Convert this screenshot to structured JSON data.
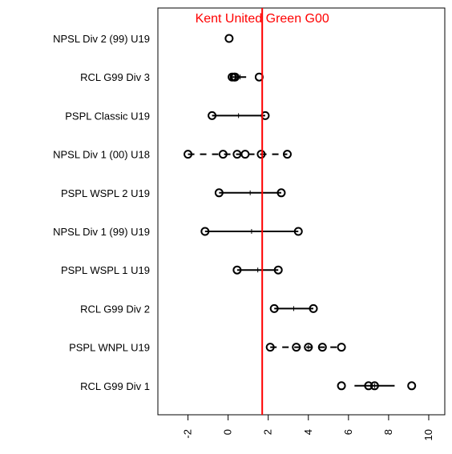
{
  "chart_data": {
    "type": "scatter",
    "orientation": "horizontal",
    "title": "",
    "xlabel": "",
    "ylabel": "",
    "xlim": [
      -3.5,
      10.8
    ],
    "x_ticks": [
      -2,
      0,
      2,
      4,
      6,
      8,
      10
    ],
    "x_tick_labels": [
      "-2",
      "0",
      "2",
      "4",
      "6",
      "8",
      "10"
    ],
    "grid": false,
    "point_color": "#000000",
    "reference_line": {
      "value": 1.7,
      "label": "Kent United Green G00",
      "color": "#ff0000"
    },
    "categories": [
      "NPSL Div 2 (99) U19",
      "RCL G99 Div 3",
      "PSPL Classic U19",
      "NPSL Div 1 (00) U18",
      "PSPL WSPL 2 U19",
      "NPSL Div 1 (99) U19",
      "PSPL WSPL 1 U19",
      "RCL G99 Div 2",
      "PSPL WNPL U19",
      "RCL G99 Div 1"
    ],
    "rows": [
      {
        "category": "NPSL Div 2 (99) U19",
        "points": [
          0.05
        ],
        "range": null,
        "mean": 0.05,
        "line_style": "solid"
      },
      {
        "category": "RCL G99 Div 3",
        "points": [
          0.2,
          0.3,
          0.35,
          1.55
        ],
        "range": [
          0.2,
          0.9
        ],
        "mean": 0.6,
        "line_style": "solid"
      },
      {
        "category": "PSPL Classic U19",
        "points": [
          -0.8,
          1.85
        ],
        "range": [
          -0.8,
          1.85
        ],
        "mean": 0.52,
        "line_style": "solid"
      },
      {
        "category": "NPSL Div 1 (00) U18",
        "points": [
          -2.0,
          -0.25,
          0.45,
          0.85,
          1.65,
          2.95
        ],
        "range": [
          -2.0,
          2.95
        ],
        "mean": 0.6,
        "line_style": "dashed"
      },
      {
        "category": "PSPL WSPL 2 U19",
        "points": [
          -0.45,
          2.65
        ],
        "range": [
          -0.45,
          2.65
        ],
        "mean": 1.1,
        "line_style": "solid"
      },
      {
        "category": "NPSL Div 1 (99) U19",
        "points": [
          -1.15,
          3.5
        ],
        "range": [
          -1.15,
          3.5
        ],
        "mean": 1.17,
        "line_style": "solid"
      },
      {
        "category": "PSPL WSPL 1 U19",
        "points": [
          0.45,
          2.5
        ],
        "range": [
          0.45,
          2.5
        ],
        "mean": 1.48,
        "line_style": "solid"
      },
      {
        "category": "RCL G99 Div 2",
        "points": [
          2.3,
          4.25
        ],
        "range": [
          2.3,
          4.25
        ],
        "mean": 3.27,
        "line_style": "solid"
      },
      {
        "category": "PSPL WNPL U19",
        "points": [
          2.1,
          3.4,
          4.0,
          4.7,
          5.65
        ],
        "range": [
          2.1,
          5.65
        ],
        "mean": 4.0,
        "line_style": "dashed"
      },
      {
        "category": "RCL G99 Div 1",
        "points": [
          5.65,
          7.0,
          7.3,
          9.15
        ],
        "range": [
          6.3,
          8.3
        ],
        "mean": 7.3,
        "line_style": "solid"
      }
    ]
  }
}
